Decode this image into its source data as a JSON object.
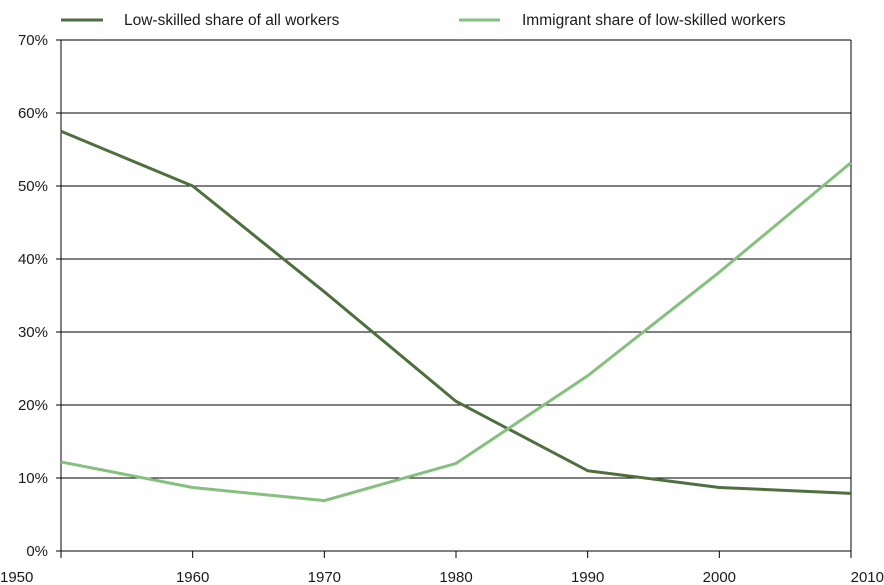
{
  "chart_data": {
    "type": "line",
    "x": [
      1950,
      1960,
      1970,
      1980,
      1990,
      2000,
      2010
    ],
    "series": [
      {
        "name": "Low-skilled share of all workers",
        "color": "#4f6f3f",
        "values": [
          57.5,
          50,
          35.5,
          20.5,
          11,
          8.7,
          7.9
        ]
      },
      {
        "name": "Immigrant share of low-skilled workers",
        "color": "#86c07f",
        "values": [
          12.2,
          8.7,
          6.9,
          12,
          24,
          38.2,
          53.2
        ]
      }
    ],
    "title": "",
    "xlabel": "",
    "ylabel": "",
    "xlim": [
      1950,
      2010
    ],
    "ylim": [
      0,
      70
    ],
    "y_ticks": [
      0,
      10,
      20,
      30,
      40,
      50,
      60,
      70
    ],
    "y_tick_labels": [
      "0%",
      "10%",
      "20%",
      "30%",
      "40%",
      "50%",
      "60%",
      "70%"
    ],
    "x_ticks": [
      1950,
      1960,
      1970,
      1980,
      1990,
      2000,
      2010
    ],
    "x_tick_labels": [
      "1950",
      "1960",
      "1970",
      "1980",
      "1990",
      "2000",
      "2010"
    ],
    "grid": "horizontal",
    "legend_position": "top"
  }
}
